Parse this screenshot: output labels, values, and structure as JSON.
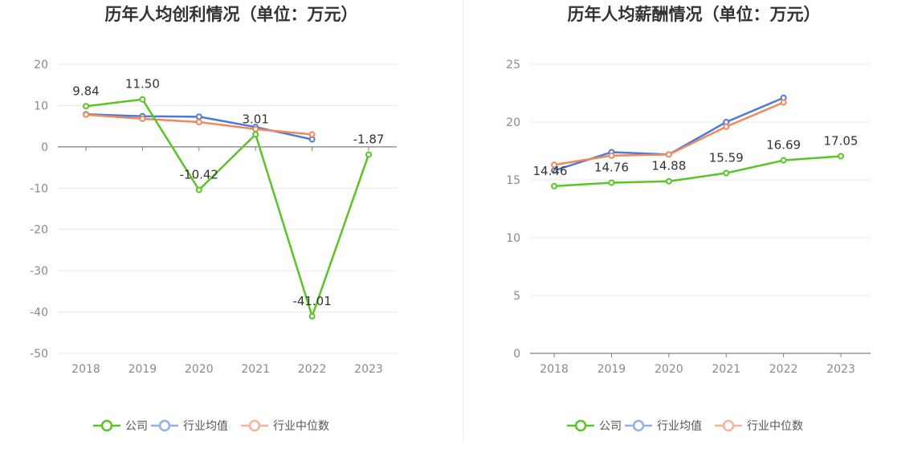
{
  "charts": [
    {
      "type": "line",
      "title": "历年人均创利情况（单位：万元）",
      "categories": [
        "2018",
        "2019",
        "2020",
        "2021",
        "2022",
        "2023"
      ],
      "ylim": [
        -50,
        20
      ],
      "yticks": [
        20,
        10,
        0,
        -10,
        -20,
        -30,
        -40,
        -50
      ],
      "series": [
        {
          "name": "公司",
          "color": "#5ac424",
          "values": [
            9.84,
            11.5,
            -10.42,
            3.01,
            -41.01,
            -1.87
          ],
          "labels": [
            "9.84",
            "11.50",
            "-10.42",
            "3.01",
            "-41.01",
            "-1.87"
          ]
        },
        {
          "name": "行业均值",
          "color": "#4a7bd8",
          "values": [
            7.9,
            7.4,
            7.3,
            4.8,
            1.8,
            null
          ]
        },
        {
          "name": "行业中位数",
          "color": "#f0875d",
          "values": [
            7.8,
            6.8,
            6.0,
            4.3,
            3.0,
            null
          ]
        }
      ]
    },
    {
      "type": "line",
      "title": "历年人均薪酬情况（单位：万元）",
      "categories": [
        "2018",
        "2019",
        "2020",
        "2021",
        "2022",
        "2023"
      ],
      "ylim": [
        0,
        25
      ],
      "yticks": [
        25,
        20,
        15,
        10,
        5,
        0
      ],
      "series": [
        {
          "name": "公司",
          "color": "#5ac424",
          "values": [
            14.46,
            14.76,
            14.88,
            15.59,
            16.69,
            17.05
          ],
          "labels": [
            "14.46",
            "14.76",
            "14.88",
            "15.59",
            "16.69",
            "17.05"
          ]
        },
        {
          "name": "行业均值",
          "color": "#4a7bd8",
          "values": [
            15.8,
            17.4,
            17.2,
            20.0,
            22.1,
            null
          ]
        },
        {
          "name": "行业中位数",
          "color": "#f0875d",
          "values": [
            16.3,
            17.1,
            17.2,
            19.6,
            21.7,
            null
          ]
        }
      ]
    }
  ],
  "legend": {
    "items": [
      {
        "label": "公司",
        "color": "#5ac424"
      },
      {
        "label": "行业均值",
        "color": "#8fb0ec"
      },
      {
        "label": "行业中位数",
        "color": "#f5b49a"
      }
    ]
  }
}
